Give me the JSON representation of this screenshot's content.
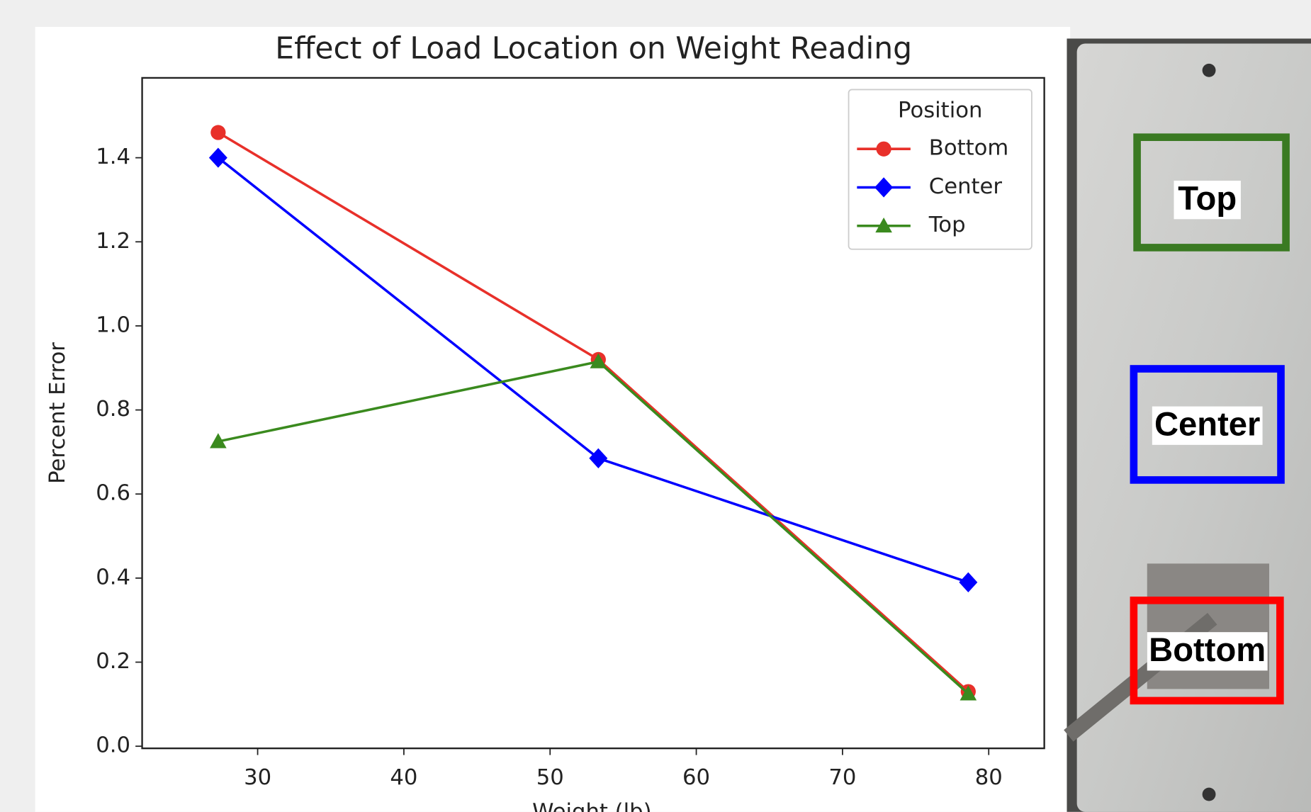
{
  "chart_data": {
    "type": "line",
    "title": "Effect of Load Location on Weight Reading",
    "x_label": "Weight (lb)",
    "y_label": "Percent Error",
    "x": [
      27.3,
      53.3,
      78.6
    ],
    "series": [
      {
        "name": "Bottom",
        "color": "#e8302a",
        "marker": "circle",
        "values": [
          1.46,
          0.92,
          0.13
        ]
      },
      {
        "name": "Center",
        "color": "#0000ff",
        "marker": "diamond",
        "values": [
          1.4,
          0.685,
          0.39
        ]
      },
      {
        "name": "Top",
        "color": "#3a8a1e",
        "marker": "triangle",
        "values": [
          0.725,
          0.915,
          0.125
        ]
      }
    ],
    "legend_title": "Position",
    "legend": "upper right",
    "xlim": [
      22.1,
      83.8
    ],
    "ylim": [
      -0.005,
      1.59
    ],
    "xticks": [
      30,
      40,
      50,
      60,
      70,
      80
    ],
    "yticks": [
      {
        "value": 0,
        "label": "0.0"
      },
      0.2,
      0.4,
      0.6,
      0.8,
      {
        "value": 1,
        "label": "1.0"
      },
      1.2,
      1.4
    ]
  },
  "photo": {
    "labels": [
      "Top",
      "Center",
      "Bottom"
    ]
  }
}
